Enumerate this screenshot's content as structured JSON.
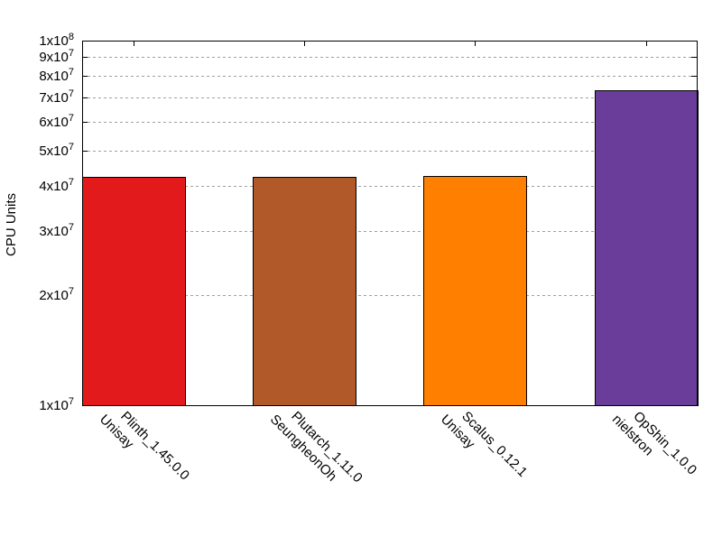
{
  "chart_data": {
    "type": "bar",
    "title": "",
    "xlabel": "",
    "ylabel": "CPU Units",
    "yscale": "log",
    "ylim": [
      10000000,
      100000000
    ],
    "grid": {
      "y": true,
      "style": "dotted",
      "color": "#a0a0a0"
    },
    "legend": null,
    "categories": [
      {
        "line1": "Plinth_1.45.0.0",
        "line2": "Unisay"
      },
      {
        "line1": "Plutarch_1.11.0",
        "line2": "SeungheonOh"
      },
      {
        "line1": "Scalus_0.12.1",
        "line2": "Unisay"
      },
      {
        "line1": "OpShin_1.0.0",
        "line2": "nielstron"
      }
    ],
    "values": [
      42300000,
      42300000,
      42500000,
      73100000
    ],
    "colors": [
      "#e31a1c",
      "#b15928",
      "#ff7f00",
      "#6a3d9a"
    ],
    "ytick_labels": [
      {
        "mant": "1x10",
        "exp": "7",
        "value": 10000000
      },
      {
        "mant": "2x10",
        "exp": "7",
        "value": 20000000
      },
      {
        "mant": "3x10",
        "exp": "7",
        "value": 30000000
      },
      {
        "mant": "4x10",
        "exp": "7",
        "value": 40000000
      },
      {
        "mant": "5x10",
        "exp": "7",
        "value": 50000000
      },
      {
        "mant": "6x10",
        "exp": "7",
        "value": 60000000
      },
      {
        "mant": "7x10",
        "exp": "7",
        "value": 70000000
      },
      {
        "mant": "8x10",
        "exp": "7",
        "value": 80000000
      },
      {
        "mant": "9x10",
        "exp": "7",
        "value": 90000000
      },
      {
        "mant": "1x10",
        "exp": "8",
        "value": 100000000
      }
    ]
  }
}
